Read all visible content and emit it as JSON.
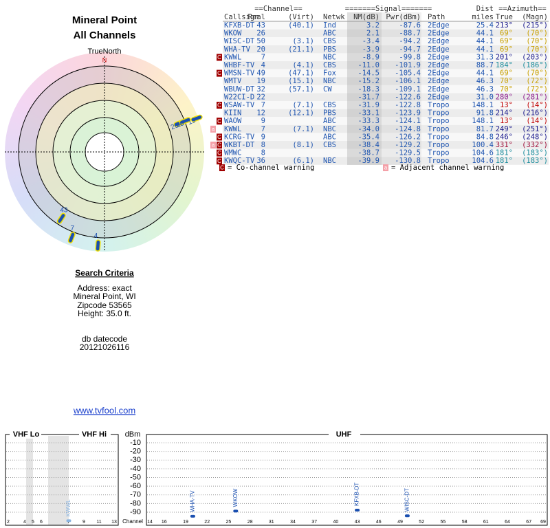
{
  "header": {
    "title": "Mineral Point",
    "subtitle": "All Channels"
  },
  "table": {
    "group_headers": [
      "==Channel==",
      "=======Signal=======",
      "Dist",
      "==Azimuth=="
    ],
    "columns": [
      "Callsign",
      "Real",
      "(Virt)",
      "Netwk",
      "NM(dB)",
      "Pwr(dBm)",
      "Path",
      "miles",
      "True",
      "(Magn)"
    ],
    "rows": [
      [
        "KFXB-DT",
        "43",
        "(40.1)",
        "Ind",
        "3.2",
        "-87.6",
        "2Edge",
        "25.4",
        "213°",
        "(215°)"
      ],
      [
        "WKOW",
        "26",
        null,
        "ABC",
        "2.1",
        "-88.7",
        "2Edge",
        "44.1",
        "69°",
        "(70°)"
      ],
      [
        "WISC-DT",
        "50",
        "(3.1)",
        "CBS",
        "-3.4",
        "-94.2",
        "2Edge",
        "44.1",
        "69°",
        "(70°)"
      ],
      [
        "WHA-TV",
        "20",
        "(21.1)",
        "PBS",
        "-3.9",
        "-94.7",
        "2Edge",
        "44.1",
        "69°",
        "(70°)"
      ],
      [
        "KWWL",
        "7",
        null,
        "NBC",
        "-8.9",
        "-99.8",
        "2Edge",
        "31.3",
        "201°",
        "(203°)"
      ],
      [
        "WHBF-TV",
        "4",
        "(4.1)",
        "CBS",
        "-11.0",
        "-101.9",
        "2Edge",
        "88.7",
        "184°",
        "(186°)"
      ],
      [
        "WMSN-TV",
        "49",
        "(47.1)",
        "Fox",
        "-14.5",
        "-105.4",
        "2Edge",
        "44.1",
        "69°",
        "(70°)"
      ],
      [
        "WMTV",
        "19",
        "(15.1)",
        "NBC",
        "-15.2",
        "-106.1",
        "2Edge",
        "46.3",
        "70°",
        "(72°)"
      ],
      [
        "WBUW-DT",
        "32",
        "(57.1)",
        "CW",
        "-18.3",
        "-109.1",
        "2Edge",
        "46.3",
        "70°",
        "(72°)"
      ],
      [
        "W22CI-D",
        "22",
        null,
        null,
        "-31.7",
        "-122.6",
        "2Edge",
        "31.0",
        "280°",
        "(281°)"
      ],
      [
        "WSAW-TV",
        "7",
        "(7.1)",
        "CBS",
        "-31.9",
        "-122.8",
        "Tropo",
        "148.1",
        "13°",
        "(14°)"
      ],
      [
        "KIIN",
        "12",
        "(12.1)",
        "PBS",
        "-33.1",
        "-123.9",
        "Tropo",
        "91.8",
        "214°",
        "(216°)"
      ],
      [
        "WAOW",
        "9",
        null,
        "ABC",
        "-33.3",
        "-124.1",
        "Tropo",
        "148.1",
        "13°",
        "(14°)"
      ],
      [
        "KWWL",
        "7",
        "(7.1)",
        "NBC",
        "-34.0",
        "-124.8",
        "Tropo",
        "81.7",
        "249°",
        "(251°)"
      ],
      [
        "KCRG-TV",
        "9",
        null,
        "ABC",
        "-35.4",
        "-126.2",
        "Tropo",
        "84.8",
        "246°",
        "(248°)"
      ],
      [
        "WKBT-DT",
        "8",
        "(8.1)",
        "CBS",
        "-38.4",
        "-129.2",
        "Tropo",
        "100.4",
        "331°",
        "(332°)"
      ],
      [
        "WMWC",
        "8",
        null,
        null,
        "-38.7",
        "-129.5",
        "Tropo",
        "104.6",
        "181°",
        "(183°)"
      ],
      [
        "KWQC-TV",
        "36",
        "(6.1)",
        "NBC",
        "-39.9",
        "-130.8",
        "Tropo",
        "104.6",
        "181°",
        "(183°)"
      ]
    ],
    "warnings": [
      null,
      null,
      null,
      null,
      "C",
      null,
      "C",
      null,
      null,
      null,
      "C",
      null,
      "C",
      "A",
      "C",
      "CA",
      "C",
      "C"
    ],
    "azimuth_colors": [
      "#1a1a8c",
      "#c8a000",
      "#c8a000",
      "#c8a000",
      "#1a1a8c",
      "#1a8c9c",
      "#c8a000",
      "#c8a000",
      "#c8a000",
      "#8c1a8c",
      "#c00000",
      "#1a1a8c",
      "#c00000",
      "#1a1a8c",
      "#1a1a8c",
      "#a0103a",
      "#1a8c9c",
      "#1a8c9c"
    ]
  },
  "legend": {
    "co_icon": "C",
    "co": "= Co-channel warning",
    "adj_icon": "a",
    "adj": "= Adjacent channel warning"
  },
  "search": {
    "title": "Search Criteria",
    "lines": [
      "Address: exact",
      "Mineral Point, WI",
      "Zipcode 53565",
      "Height: 35.0 ft."
    ],
    "datecode_label": "db datecode",
    "datecode": "20121026116"
  },
  "link": "www.tvfool.com",
  "chart_data": [
    {
      "type": "polar",
      "title": "TrueNorth",
      "north": "N",
      "categories": [
        "43",
        "7",
        "4",
        "26",
        "50",
        "20",
        "19"
      ],
      "azimuth": [
        213,
        201,
        184,
        69,
        69,
        69,
        70
      ],
      "values": [
        3.2,
        -8.9,
        -11.0,
        2.1,
        -3.4,
        -3.9,
        -15.2
      ],
      "color": "#1a4fb0"
    },
    {
      "type": "spectrum",
      "y_label": "dBm",
      "x_label": "Channel",
      "band_labels": [
        "VHF Lo",
        "VHF Hi",
        "UHF"
      ],
      "categories": [
        "WHA-TV",
        "WKOW",
        "KFXB-DT",
        "WISC-DT",
        "KWWL"
      ],
      "x": [
        20,
        26,
        43,
        50,
        7
      ],
      "values": [
        -94.7,
        -88.7,
        -87.6,
        -94.2,
        -99.8
      ],
      "colors": [
        "#1a4fb0",
        "#1a4fb0",
        "#1a4fb0",
        "#1a4fb0",
        "#8ab4e0"
      ],
      "ylim": [
        -100,
        -3
      ],
      "yticks": [
        -10,
        -20,
        -30,
        -40,
        -50,
        -60,
        -70,
        -80,
        -90
      ],
      "xticks_vhf": [
        2,
        4,
        5,
        6,
        7,
        9,
        11,
        13
      ],
      "xticks_uhf": [
        14,
        16,
        19,
        22,
        25,
        28,
        31,
        34,
        37,
        40,
        43,
        46,
        49,
        52,
        55,
        58,
        61,
        64,
        67,
        69
      ],
      "grid": true
    }
  ]
}
